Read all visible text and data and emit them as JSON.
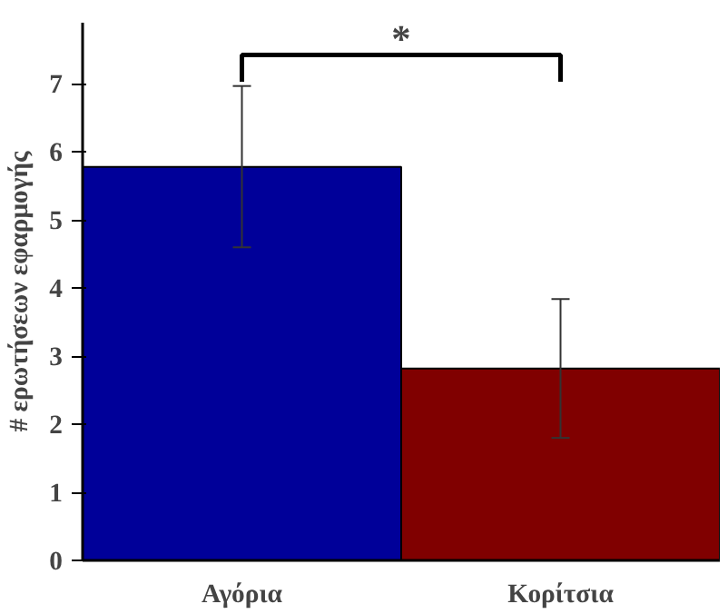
{
  "chart_data": {
    "type": "bar",
    "ylabel": "# ερωτήσεων εφαρμογής",
    "categories": [
      "Αγόρια",
      "Κορίτσια"
    ],
    "values": [
      5.78,
      2.82
    ],
    "colors": [
      "#000099",
      "#800000"
    ],
    "errors": [
      [
        4.6,
        6.97
      ],
      [
        1.8,
        3.84
      ]
    ],
    "ylim": [
      0,
      7.9
    ],
    "yticks": [
      0,
      1,
      2,
      3,
      4,
      5,
      6,
      7
    ],
    "grid": false,
    "annotations": [
      "*"
    ]
  }
}
